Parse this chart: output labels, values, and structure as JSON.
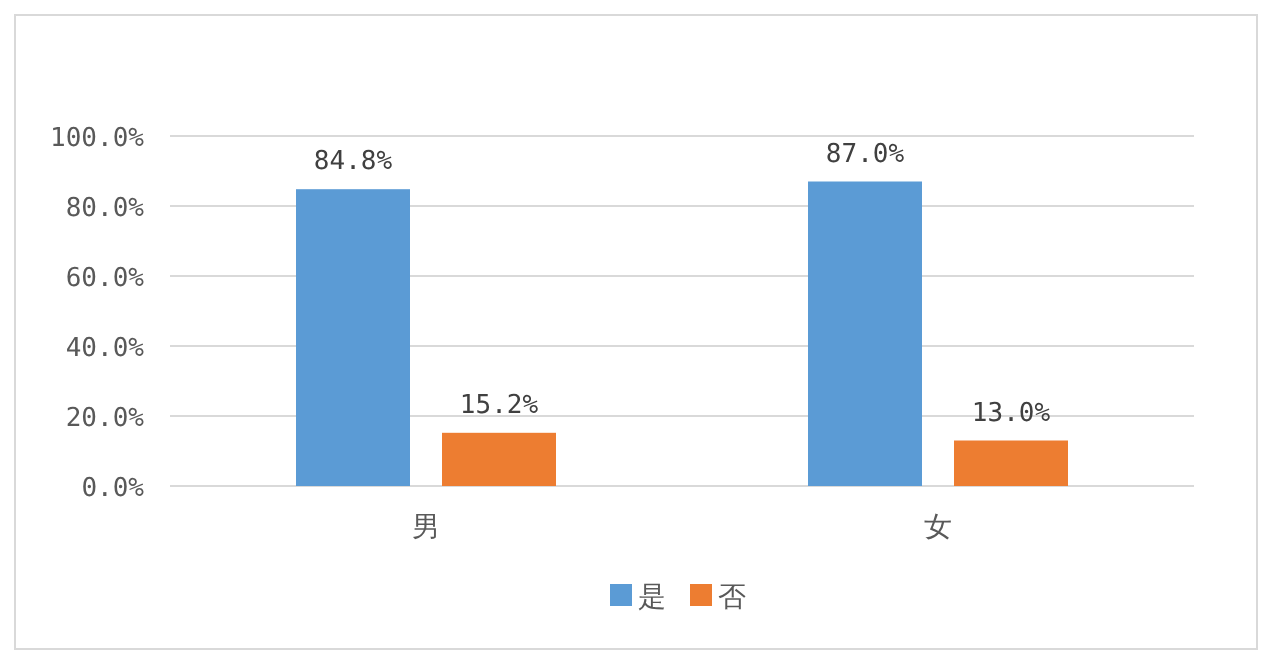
{
  "chart_data": {
    "type": "bar",
    "categories": [
      "男",
      "女"
    ],
    "series": [
      {
        "name": "是",
        "color": "#5b9bd5",
        "values": [
          84.8,
          87.0
        ],
        "value_labels": [
          "84.8%",
          "87.0%"
        ]
      },
      {
        "name": "否",
        "color": "#ed7d31",
        "values": [
          15.2,
          13.0
        ],
        "value_labels": [
          "15.2%",
          "13.0%"
        ]
      }
    ],
    "ylim": [
      0,
      100
    ],
    "yticks": [
      {
        "value": 0,
        "label": "0.0%"
      },
      {
        "value": 20,
        "label": "20.0%"
      },
      {
        "value": 40,
        "label": "40.0%"
      },
      {
        "value": 60,
        "label": "60.0%"
      },
      {
        "value": 80,
        "label": "80.0%"
      },
      {
        "value": 100,
        "label": "100.0%"
      }
    ],
    "grid": "y",
    "legend": "bottom"
  }
}
